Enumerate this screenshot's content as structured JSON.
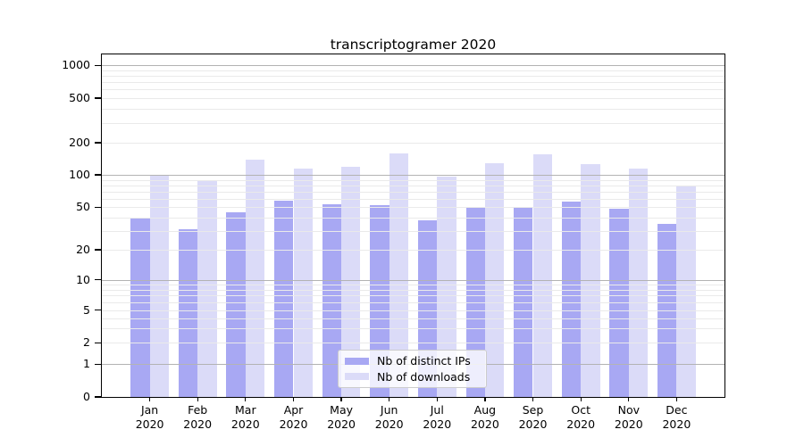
{
  "chart_data": {
    "type": "bar",
    "title": "transcriptogramer 2020",
    "yscale": "symlog",
    "grid": "both",
    "legend_position": "lower center",
    "categories_months": [
      "Jan",
      "Feb",
      "Mar",
      "Apr",
      "May",
      "Jun",
      "Jul",
      "Aug",
      "Sep",
      "Oct",
      "Nov",
      "Dec"
    ],
    "categories_year": "2020",
    "series": [
      {
        "name": "Nb of distinct IPs",
        "key": "distinct-ips",
        "color": "#a8a8f3",
        "values": [
          40,
          31,
          45,
          57,
          53,
          52,
          38,
          50,
          50,
          56,
          48,
          35
        ]
      },
      {
        "name": "Nb of downloads",
        "key": "downloads",
        "color": "#dbdbf8",
        "values": [
          100,
          90,
          140,
          115,
          118,
          160,
          97,
          128,
          155,
          127,
          114,
          78
        ]
      }
    ],
    "y_ticks": [
      0,
      1,
      2,
      5,
      10,
      20,
      50,
      100,
      200,
      500,
      1000
    ],
    "ylim": [
      0,
      1250
    ],
    "xlabel": "",
    "ylabel": ""
  },
  "colors": {
    "grid_major": "#b3b3b3",
    "grid_minor": "#eaeaea",
    "axis": "#000000",
    "legend_border": "#cccccc"
  }
}
